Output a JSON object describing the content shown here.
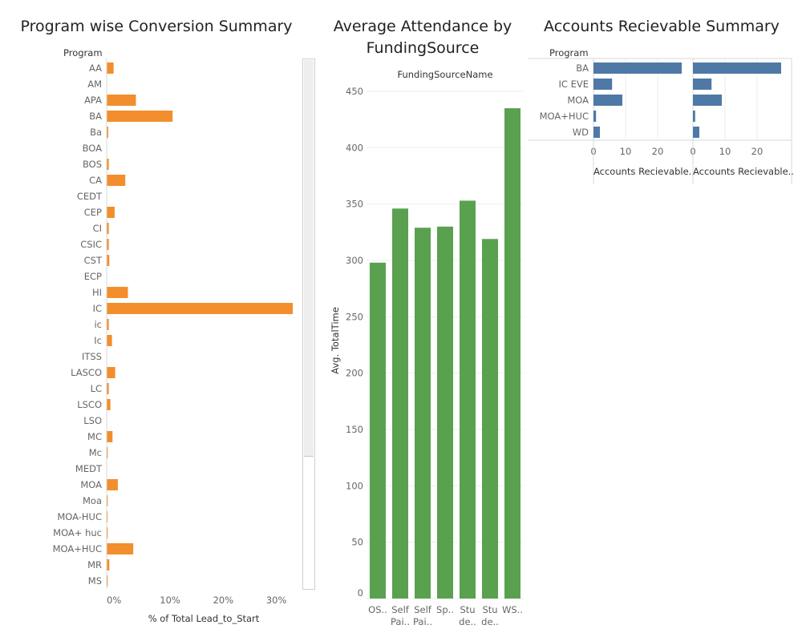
{
  "colors": {
    "conversion_bar": "#f28e2b",
    "attendance_bar": "#59a14f",
    "receivable_bar": "#4e79a7",
    "grid": "#eeeeee",
    "axis_text": "#666666"
  },
  "dashboard": {
    "conversion_title": "Program wise Conversion Summary",
    "attendance_title_line1": "Average Attendance by",
    "attendance_title_line2": "FundingSource",
    "receivable_title": "Accounts Recievable Summary"
  },
  "chart_data": [
    {
      "type": "bar",
      "orientation": "horizontal",
      "title": "Program wise Conversion Summary",
      "row_header": "Program",
      "xlabel": "% of Total Lead_to_Start",
      "categories": [
        "AA",
        "AM",
        "APA",
        "BA",
        "Ba",
        "BOA",
        "BOS",
        "CA",
        "CEDT",
        "CEP",
        "CI",
        "CSIC",
        "CST",
        "ECP",
        "HI",
        "IC",
        "ic",
        "Ic",
        "ITSS",
        "LASCO",
        "LC",
        "LSCO",
        "LSO",
        "MC",
        "Mc",
        "MEDT",
        "MOA",
        "Moa",
        "MOA-HUC",
        "MOA+ huc",
        "MOA+HUC",
        "MR",
        "MS"
      ],
      "values": [
        1.3,
        0,
        5.5,
        12.4,
        0.3,
        0,
        0.4,
        3.5,
        0,
        1.5,
        0.4,
        0.4,
        0.5,
        0,
        4.0,
        35.0,
        0.4,
        1.0,
        0,
        1.6,
        0.4,
        0.7,
        0,
        1.1,
        0.2,
        0,
        2.1,
        0.2,
        0.1,
        0.2,
        5.0,
        0.5,
        0.2
      ],
      "ticks": [
        0,
        10,
        20,
        30
      ],
      "tick_labels": [
        "0%",
        "10%",
        "20%",
        "30%"
      ],
      "xlim": [
        0,
        35.5
      ],
      "grid": false
    },
    {
      "type": "bar",
      "orientation": "vertical",
      "title": "Average Attendance by FundingSource",
      "column_header": "FundingSourceName",
      "ylabel": "Avg. TotalTime",
      "categories": [
        [
          "OS.."
        ],
        [
          "Self",
          "Pai.."
        ],
        [
          "Self",
          "Pai.."
        ],
        [
          "Sp.."
        ],
        [
          "Stu",
          "de.."
        ],
        [
          "Stu",
          "de.."
        ],
        [
          "WS.."
        ]
      ],
      "values": [
        298,
        346,
        329,
        330,
        353,
        319,
        435
      ],
      "ticks": [
        0,
        50,
        100,
        150,
        200,
        250,
        300,
        350,
        400,
        450
      ],
      "tick_labels": [
        "0",
        "50",
        "100",
        "150",
        "200",
        "250",
        "300",
        "350",
        "400",
        "450"
      ],
      "ylim": [
        0,
        450
      ],
      "grid": true
    },
    {
      "type": "bar",
      "orientation": "horizontal",
      "title": "Accounts Recievable Summary",
      "row_header": "Program",
      "categories": [
        "BA",
        "IC EVE",
        "MOA",
        "MOA+HUC",
        "WD"
      ],
      "series": [
        {
          "name": "Accounts Recievable..",
          "values": [
            27.5,
            5.8,
            9.0,
            0.8,
            2.0
          ]
        },
        {
          "name": "Accounts Recievable..",
          "values": [
            27.5,
            5.8,
            9.0,
            0.7,
            2.0
          ]
        }
      ],
      "ticks": [
        0,
        10,
        20
      ],
      "tick_labels": [
        "0",
        "10",
        "20"
      ],
      "xlim": [
        0,
        29
      ],
      "grid": true
    }
  ]
}
